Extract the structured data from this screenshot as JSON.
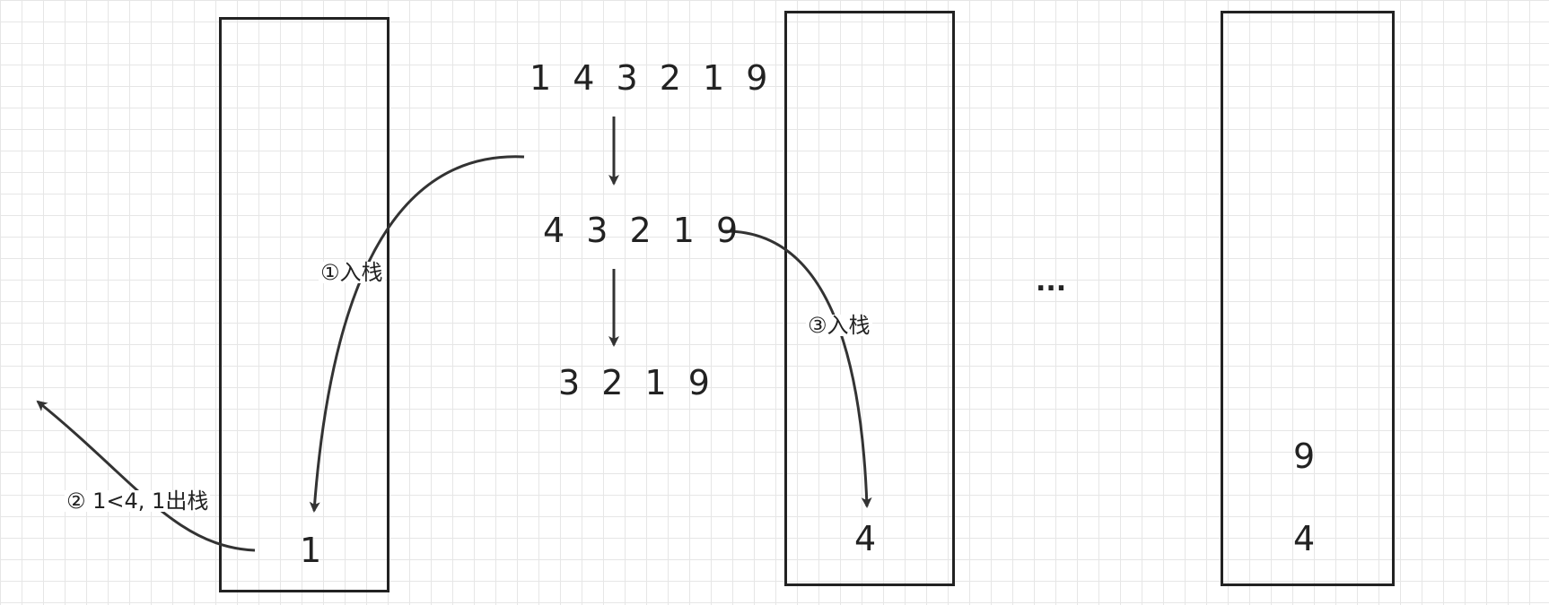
{
  "colors": {
    "line": "#333333",
    "grid": "#e6e6e6",
    "background": "#ffffff"
  },
  "sequences": {
    "step1": "1 4 3 2 1 9",
    "step2": "4 3 2 1 9",
    "step3": "3 2 1 9"
  },
  "stacks": {
    "stack1": {
      "items": [
        "1"
      ]
    },
    "stack2": {
      "items": [
        "4"
      ]
    },
    "stack3": {
      "items": [
        "9",
        "4"
      ]
    }
  },
  "labels": {
    "push1": "①入栈",
    "pop": "② 1<4, 1出栈",
    "push3": "③入栈",
    "ellipsis": "..."
  }
}
